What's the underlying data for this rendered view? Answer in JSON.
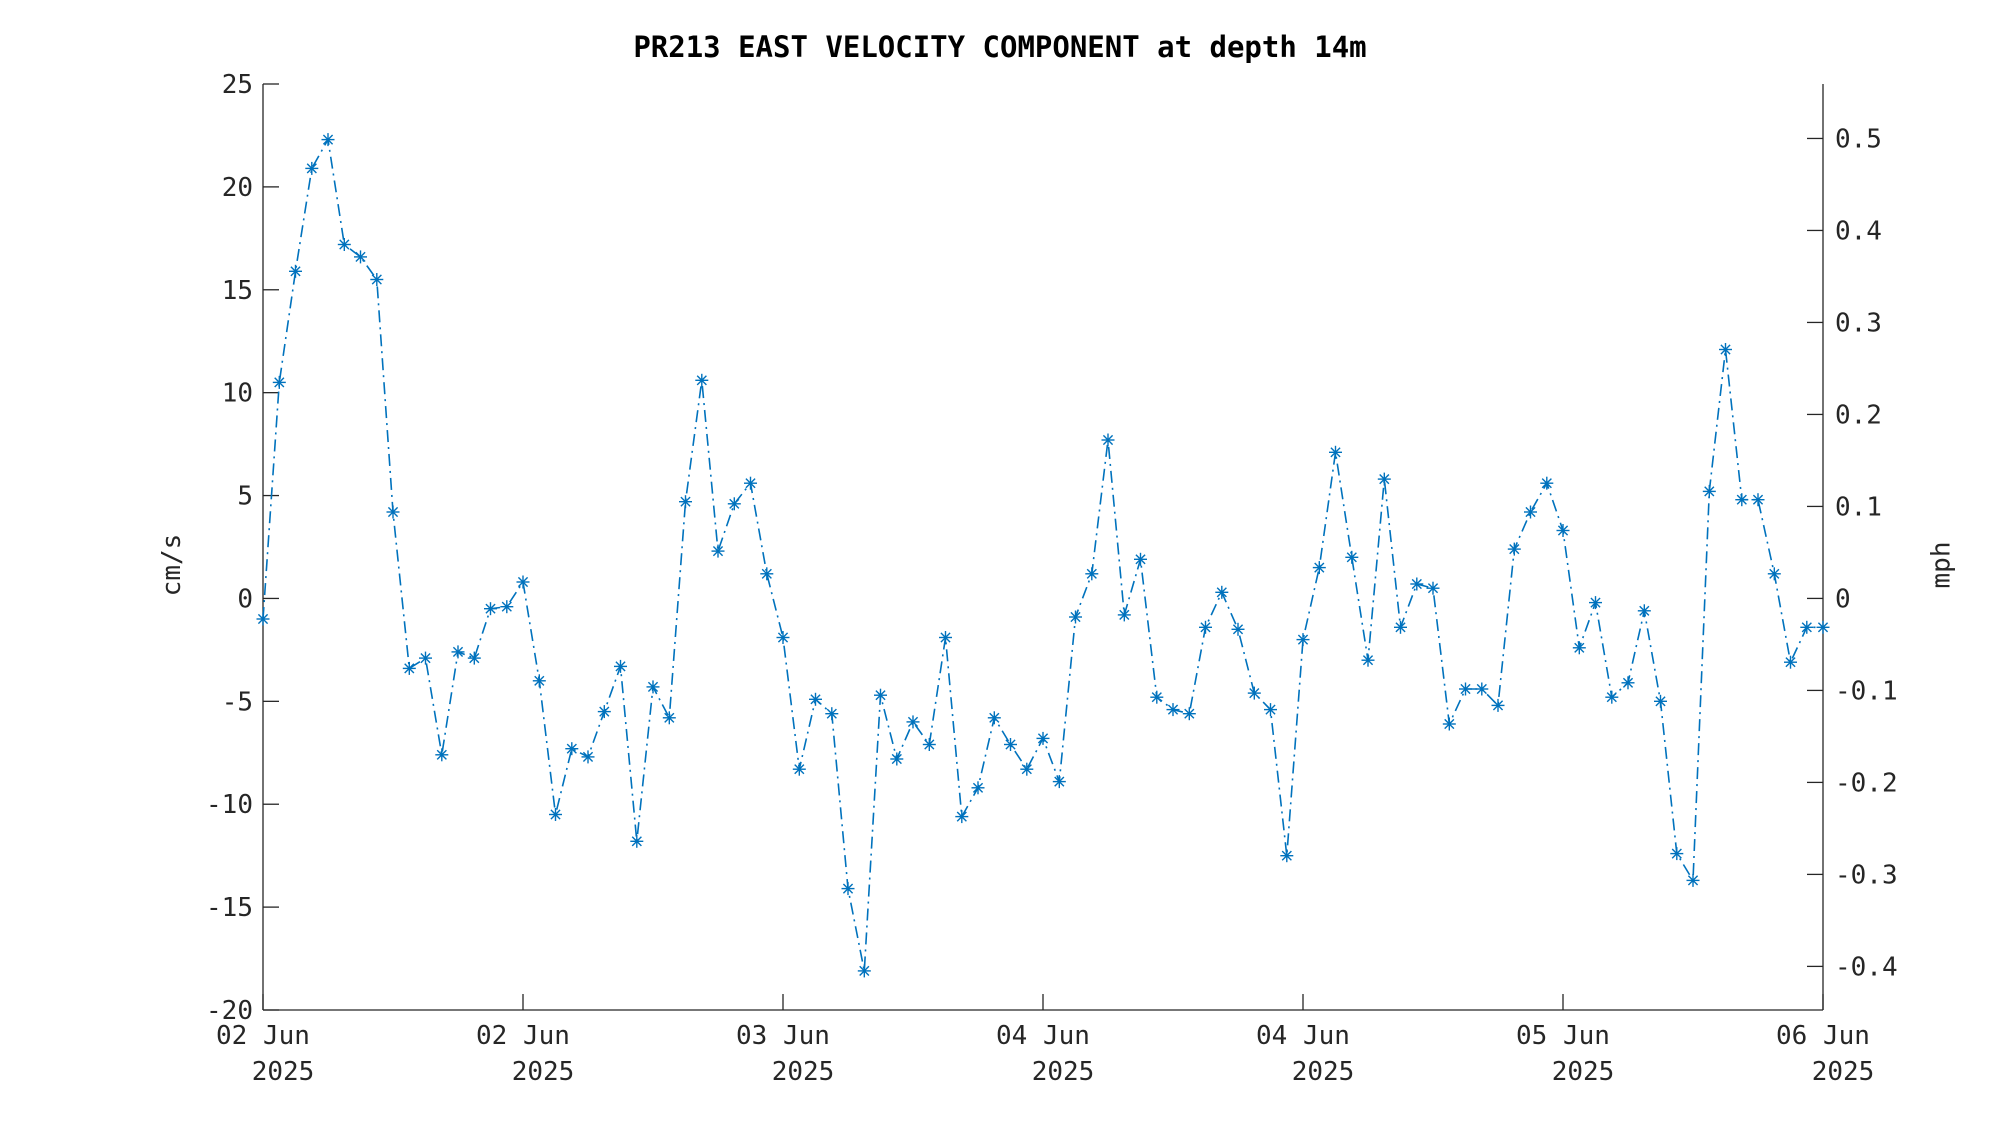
{
  "chart_data": {
    "type": "line",
    "title": "PR213 EAST VELOCITY COMPONENT at depth 14m",
    "ylabel": "cm/s",
    "ylabel_right": "mph",
    "ylim": [
      -20,
      25
    ],
    "ylim_right_mph": [
      -0.4474,
      0.5592
    ],
    "yticks": [
      -20,
      -15,
      -10,
      -5,
      0,
      5,
      10,
      15,
      20,
      25
    ],
    "yticks_right": [
      -0.4,
      -0.3,
      -0.2,
      -0.1,
      0,
      0.1,
      0.2,
      0.3,
      0.4,
      0.5
    ],
    "xlim": [
      0,
      96
    ],
    "xticks": [
      {
        "x": 0,
        "line1": "02 Jun",
        "line2": "2025"
      },
      {
        "x": 16,
        "line1": "02 Jun",
        "line2": "2025"
      },
      {
        "x": 32,
        "line1": "03 Jun",
        "line2": "2025"
      },
      {
        "x": 48,
        "line1": "04 Jun",
        "line2": "2025"
      },
      {
        "x": 64,
        "line1": "04 Jun",
        "line2": "2025"
      },
      {
        "x": 80,
        "line1": "05 Jun",
        "line2": "2025"
      },
      {
        "x": 96,
        "line1": "06 Jun",
        "line2": "2025"
      }
    ],
    "x_unit": "hours from 02 Jun 2025 00:00",
    "grid": false,
    "color": "#0072BD",
    "series": [
      {
        "x": [
          0,
          1,
          2,
          3,
          4,
          5,
          6,
          7,
          8,
          9,
          10,
          11,
          12,
          13,
          14,
          15,
          16,
          17,
          18,
          19,
          20,
          21,
          22,
          23,
          24,
          25,
          26,
          27,
          28,
          29,
          30,
          31,
          32,
          33,
          34,
          35,
          36,
          37,
          38,
          39,
          40,
          41,
          42,
          43,
          44,
          45,
          46,
          47,
          48,
          49,
          50,
          51,
          52,
          53,
          54,
          55,
          56,
          57,
          58,
          59,
          60,
          61,
          62,
          63,
          64,
          65,
          66,
          67,
          68,
          69,
          70,
          71,
          72,
          73,
          74,
          75,
          76,
          77,
          78,
          79,
          80,
          81,
          82,
          83,
          84,
          85,
          86,
          87,
          88,
          89,
          90,
          91,
          92,
          93,
          94,
          95,
          96
        ],
        "values": [
          -1.0,
          10.5,
          15.9,
          20.9,
          22.3,
          17.2,
          16.6,
          15.5,
          4.2,
          -3.4,
          -2.9,
          -7.6,
          -2.6,
          -2.9,
          -0.5,
          -0.4,
          0.8,
          -4.0,
          -10.5,
          -7.3,
          -7.7,
          -5.5,
          -3.3,
          -11.8,
          -4.3,
          -5.8,
          4.7,
          10.6,
          2.3,
          4.6,
          5.6,
          1.2,
          -1.9,
          -8.3,
          -4.9,
          -5.6,
          -14.1,
          -18.1,
          -4.7,
          -7.8,
          -6.0,
          -7.1,
          -1.9,
          -10.6,
          -9.2,
          -5.8,
          -7.1,
          -8.3,
          -6.8,
          -8.9,
          -0.9,
          1.2,
          7.7,
          -0.8,
          1.9,
          -4.8,
          -5.4,
          -5.6,
          -1.4,
          0.3,
          -1.5,
          -4.6,
          -5.4,
          -12.5,
          -2.0,
          1.5,
          7.1,
          2.0,
          -3.0,
          5.8,
          -1.4,
          0.7,
          0.5,
          -6.1,
          -4.4,
          -4.4,
          -5.2,
          2.4,
          4.2,
          5.6,
          3.3,
          -2.4,
          -0.2,
          -4.8,
          -4.1,
          -0.6,
          -5.0,
          -12.4,
          -13.7,
          5.2,
          12.1,
          4.8,
          4.8,
          1.2,
          -3.1,
          -1.4,
          -1.4
        ]
      }
    ]
  }
}
